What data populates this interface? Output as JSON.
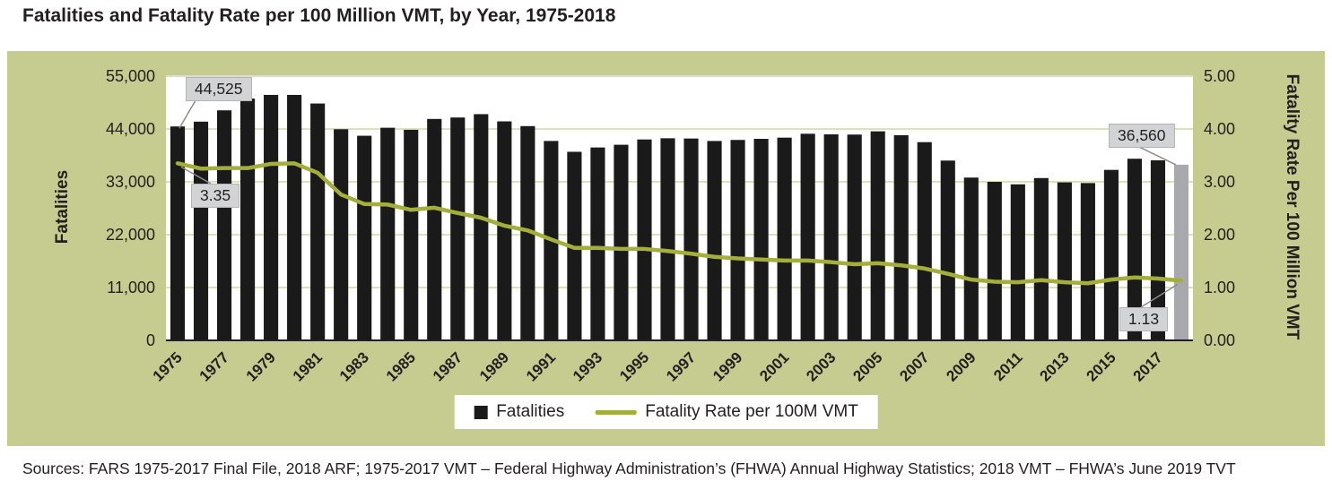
{
  "title": "Fatalities and Fatality Rate per 100 Million VMT, by Year, 1975-2018",
  "source": "Sources: FARS 1975-2017 Final File, 2018 ARF; 1975-2017 VMT – Federal Highway Administration’s (FHWA) Annual Highway Statistics; 2018 VMT – FHWA’s June 2019 TVT",
  "colors": {
    "panel_bg": "#c6cc8f",
    "plot_bg": "#ffffff",
    "gridline": "#dce0bd",
    "bar": "#1a1a1a",
    "bar_2018": "#a7a9ac",
    "rate_line": "#a4ae3a",
    "callout_bg": "#d1d3d4",
    "axis_line": "#231f20",
    "leader_line": "#8a8c8e",
    "text": "#231f20"
  },
  "legend": {
    "items": [
      {
        "label": "Fatalities",
        "swatch": "square",
        "color": "#1a1a1a"
      },
      {
        "label": "Fatality Rate per 100M VMT",
        "swatch": "line",
        "color": "#a4ae3a"
      }
    ]
  },
  "chart_data": {
    "type": "combo",
    "categories": [
      "1975",
      "1976",
      "1977",
      "1978",
      "1979",
      "1980",
      "1981",
      "1982",
      "1983",
      "1984",
      "1985",
      "1986",
      "1987",
      "1988",
      "1989",
      "1990",
      "1991",
      "1992",
      "1993",
      "1994",
      "1995",
      "1996",
      "1997",
      "1998",
      "1999",
      "2000",
      "2001",
      "2002",
      "2003",
      "2004",
      "2005",
      "2006",
      "2007",
      "2008",
      "2009",
      "2010",
      "2011",
      "2012",
      "2013",
      "2014",
      "2015",
      "2016",
      "2017",
      "2018"
    ],
    "series": [
      {
        "name": "Fatalities",
        "type": "bar",
        "axis": "left",
        "color": "#1a1a1a",
        "values": [
          44525,
          45523,
          47878,
          50331,
          51093,
          51091,
          49301,
          43945,
          42589,
          44257,
          43825,
          46087,
          46390,
          47087,
          45582,
          44599,
          41508,
          39250,
          40150,
          40716,
          41817,
          42065,
          42013,
          41501,
          41717,
          41945,
          42196,
          43005,
          42884,
          42836,
          43510,
          42708,
          41259,
          37423,
          33883,
          32999,
          32479,
          33782,
          32893,
          32744,
          35484,
          37806,
          37473,
          36560
        ]
      },
      {
        "name": "Fatality Rate per 100M VMT",
        "type": "line",
        "axis": "right",
        "color": "#a4ae3a",
        "values": [
          3.35,
          3.25,
          3.26,
          3.26,
          3.34,
          3.35,
          3.17,
          2.76,
          2.58,
          2.57,
          2.47,
          2.51,
          2.41,
          2.32,
          2.17,
          2.08,
          1.91,
          1.75,
          1.75,
          1.73,
          1.73,
          1.69,
          1.64,
          1.58,
          1.55,
          1.53,
          1.51,
          1.51,
          1.48,
          1.44,
          1.46,
          1.42,
          1.36,
          1.26,
          1.15,
          1.11,
          1.1,
          1.14,
          1.1,
          1.08,
          1.15,
          1.19,
          1.17,
          1.13
        ]
      }
    ],
    "left_axis": {
      "title": "Fatalities",
      "min": 0,
      "max": 55000,
      "step": 11000,
      "tick_labels": [
        "0",
        "11,000",
        "22,000",
        "33,000",
        "44,000",
        "55,000"
      ]
    },
    "right_axis": {
      "title": "Fatality Rate Per 100 Million VMT",
      "min": 0,
      "max": 5,
      "step": 1,
      "tick_labels": [
        "0.00",
        "1.00",
        "2.00",
        "3.00",
        "4.00",
        "5.00"
      ]
    },
    "x_tick_labels": [
      "1975",
      "1977",
      "1979",
      "1981",
      "1983",
      "1985",
      "1987",
      "1989",
      "1991",
      "1993",
      "1995",
      "1997",
      "1999",
      "2001",
      "2003",
      "2005",
      "2007",
      "2009",
      "2011",
      "2013",
      "2015",
      "2017"
    ],
    "annotations": [
      {
        "text": "44,525",
        "refers_to": "1975 fatalities"
      },
      {
        "text": "3.35",
        "refers_to": "1975 fatality rate"
      },
      {
        "text": "36,560",
        "refers_to": "2018 fatalities"
      },
      {
        "text": "1.13",
        "refers_to": "2018 fatality rate"
      }
    ],
    "highlighted_category": "2018",
    "grid": true,
    "legend_position": "bottom-center"
  }
}
